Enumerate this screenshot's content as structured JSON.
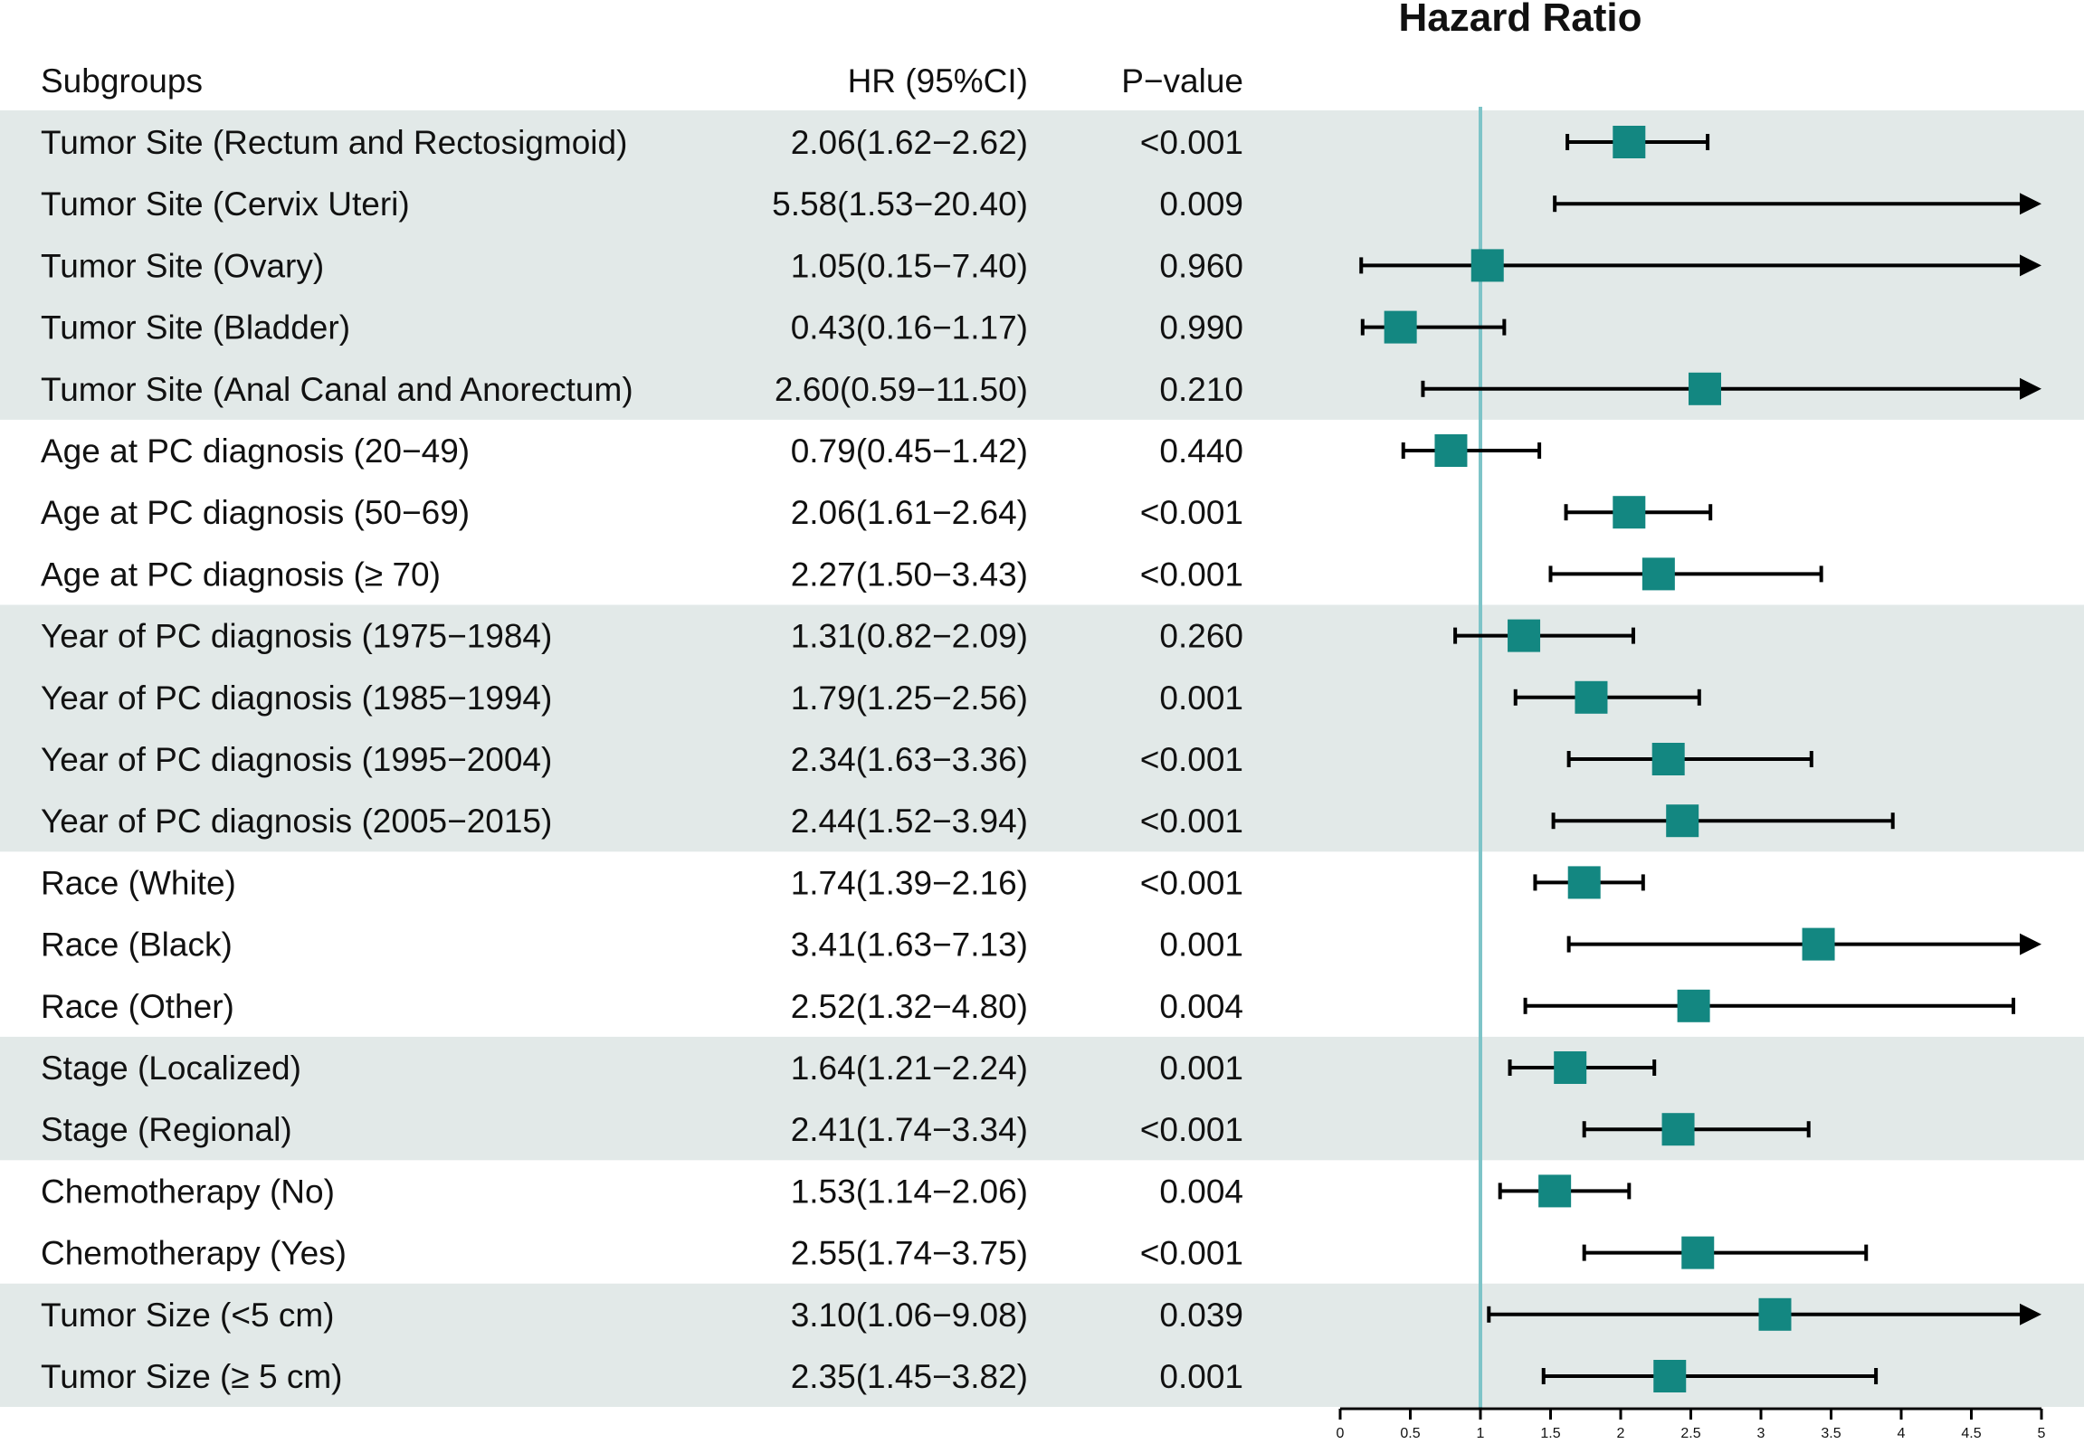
{
  "chart_data": {
    "type": "forest",
    "title": "Hazard Ratio",
    "columns": {
      "subgroup": "Subgroups",
      "hr": "HR (95%CI)",
      "p": "P−value"
    },
    "xlim": [
      0,
      5
    ],
    "xticks": [
      "0",
      "0.5",
      "1",
      "1.5",
      "2",
      "2.5",
      "3",
      "3.5",
      "4",
      "4.5",
      "5"
    ],
    "xtick_values": [
      0,
      0.5,
      1,
      1.5,
      2,
      2.5,
      3,
      3.5,
      4,
      4.5,
      5
    ],
    "reference_line": 1,
    "rows": [
      {
        "label": "Tumor Site (Rectum and Rectosigmoid)",
        "hr_text": "2.06(1.62−2.62)",
        "p": "<0.001",
        "hr": 2.06,
        "lo": 1.62,
        "hi": 2.62,
        "group": 0
      },
      {
        "label": "Tumor Site  (Cervix Uteri)",
        "hr_text": "5.58(1.53−20.40)",
        "p": "0.009",
        "hr": 5.58,
        "lo": 1.53,
        "hi": 20.4,
        "group": 0
      },
      {
        "label": "Tumor Site  (Ovary)",
        "hr_text": "1.05(0.15−7.40)",
        "p": "0.960",
        "hr": 1.05,
        "lo": 0.15,
        "hi": 7.4,
        "group": 0
      },
      {
        "label": "Tumor Site  (Bladder)",
        "hr_text": "0.43(0.16−1.17)",
        "p": "0.990",
        "hr": 0.43,
        "lo": 0.16,
        "hi": 1.17,
        "group": 0
      },
      {
        "label": "Tumor Site (Anal Canal and Anorectum)",
        "hr_text": "2.60(0.59−11.50)",
        "p": "0.210",
        "hr": 2.6,
        "lo": 0.59,
        "hi": 11.5,
        "group": 0
      },
      {
        "label": "Age at PC diagnosis (20−49)",
        "hr_text": "0.79(0.45−1.42)",
        "p": "0.440",
        "hr": 0.79,
        "lo": 0.45,
        "hi": 1.42,
        "group": 1
      },
      {
        "label": "Age at PC diagnosis (50−69)",
        "hr_text": "2.06(1.61−2.64)",
        "p": "<0.001",
        "hr": 2.06,
        "lo": 1.61,
        "hi": 2.64,
        "group": 1
      },
      {
        "label": "Age at PC diagnosis (≥ 70)",
        "hr_text": "2.27(1.50−3.43)",
        "p": "<0.001",
        "hr": 2.27,
        "lo": 1.5,
        "hi": 3.43,
        "group": 1
      },
      {
        "label": "Year of PC diagnosis (1975−1984)",
        "hr_text": "1.31(0.82−2.09)",
        "p": "0.260",
        "hr": 1.31,
        "lo": 0.82,
        "hi": 2.09,
        "group": 2
      },
      {
        "label": "Year of PC diagnosis (1985−1994)",
        "hr_text": "1.79(1.25−2.56)",
        "p": "0.001",
        "hr": 1.79,
        "lo": 1.25,
        "hi": 2.56,
        "group": 2
      },
      {
        "label": "Year of PC diagnosis (1995−2004)",
        "hr_text": "2.34(1.63−3.36)",
        "p": "<0.001",
        "hr": 2.34,
        "lo": 1.63,
        "hi": 3.36,
        "group": 2
      },
      {
        "label": "Year of PC diagnosis (2005−2015)",
        "hr_text": "2.44(1.52−3.94)",
        "p": "<0.001",
        "hr": 2.44,
        "lo": 1.52,
        "hi": 3.94,
        "group": 2
      },
      {
        "label": "Race  (White)",
        "hr_text": "1.74(1.39−2.16)",
        "p": "<0.001",
        "hr": 1.74,
        "lo": 1.39,
        "hi": 2.16,
        "group": 3
      },
      {
        "label": "Race   (Black)",
        "hr_text": "3.41(1.63−7.13)",
        "p": "0.001",
        "hr": 3.41,
        "lo": 1.63,
        "hi": 7.13,
        "group": 3
      },
      {
        "label": "Race (Other)",
        "hr_text": "2.52(1.32−4.80)",
        "p": "0.004",
        "hr": 2.52,
        "lo": 1.32,
        "hi": 4.8,
        "group": 3
      },
      {
        "label": "Stage (Localized)",
        "hr_text": "1.64(1.21−2.24)",
        "p": "0.001",
        "hr": 1.64,
        "lo": 1.21,
        "hi": 2.24,
        "group": 4
      },
      {
        "label": "Stage (Regional)",
        "hr_text": "2.41(1.74−3.34)",
        "p": "<0.001",
        "hr": 2.41,
        "lo": 1.74,
        "hi": 3.34,
        "group": 4
      },
      {
        "label": "Chemotherapy (No)",
        "hr_text": "1.53(1.14−2.06)",
        "p": "0.004",
        "hr": 1.53,
        "lo": 1.14,
        "hi": 2.06,
        "group": 5
      },
      {
        "label": "Chemotherapy (Yes)",
        "hr_text": "2.55(1.74−3.75)",
        "p": "<0.001",
        "hr": 2.55,
        "lo": 1.74,
        "hi": 3.75,
        "group": 5
      },
      {
        "label": "Tumor Size (<5 cm)",
        "hr_text": "3.10(1.06−9.08)",
        "p": "0.039",
        "hr": 3.1,
        "lo": 1.06,
        "hi": 9.08,
        "group": 6
      },
      {
        "label": "Tumor Size (≥ 5 cm)",
        "hr_text": "2.35(1.45−3.82)",
        "p": "0.001",
        "hr": 2.35,
        "lo": 1.45,
        "hi": 3.82,
        "group": 6
      }
    ],
    "colors": {
      "band": "#e2e9e8",
      "marker": "#138781",
      "reference_line": "#7ec4c8",
      "ci_line": "#000000"
    }
  }
}
